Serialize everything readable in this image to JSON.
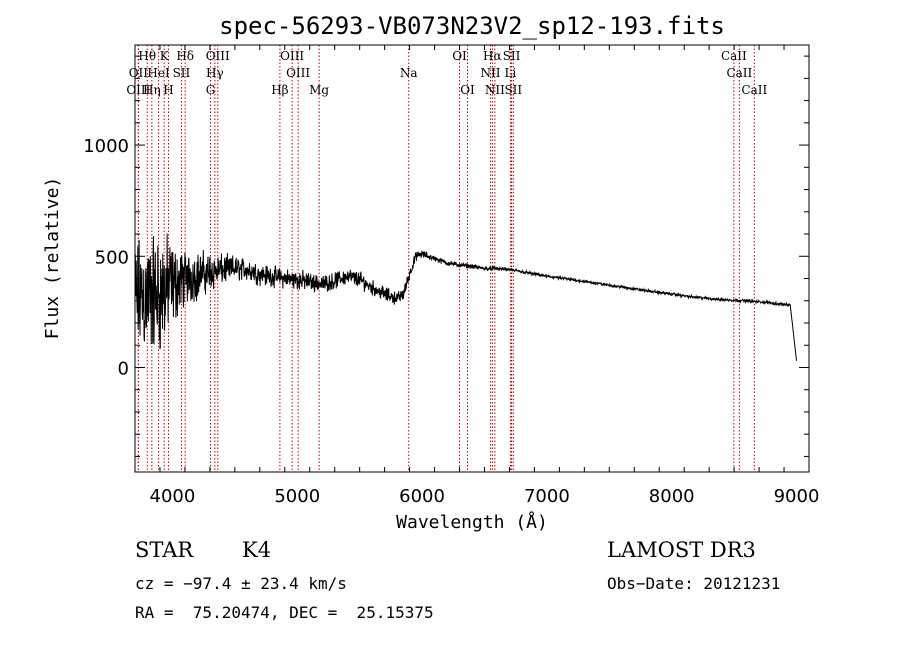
{
  "chart_data": {
    "type": "line",
    "title": "spec-56293-VB073N23V2_sp12-193.fits",
    "xlabel": "Wavelength (Å)",
    "ylabel": "Flux (relative)",
    "xlim": [
      3700,
      9100
    ],
    "ylim": [
      -470,
      1450
    ],
    "xticks": [
      4000,
      5000,
      6000,
      7000,
      8000,
      9000
    ],
    "xtick_labels": [
      "4000",
      "5000",
      "6000",
      "7000",
      "8000",
      "9000"
    ],
    "yticks": [
      0,
      500,
      1000
    ],
    "ytick_labels": [
      "0",
      "500",
      "1000"
    ],
    "spectrum": {
      "name": "flux",
      "x": [
        3700,
        3750,
        3800,
        3850,
        3900,
        3950,
        4000,
        4050,
        4100,
        4200,
        4300,
        4400,
        4500,
        4600,
        4700,
        4800,
        4900,
        5000,
        5100,
        5200,
        5300,
        5400,
        5500,
        5600,
        5700,
        5800,
        5850,
        5900,
        5950,
        6000,
        6100,
        6200,
        6300,
        6400,
        6500,
        6600,
        6700,
        6800,
        7000,
        7200,
        7500,
        7800,
        8000,
        8200,
        8400,
        8600,
        8800,
        8950,
        9000
      ],
      "values": [
        300,
        320,
        320,
        330,
        330,
        350,
        370,
        385,
        400,
        415,
        430,
        440,
        445,
        440,
        420,
        410,
        400,
        395,
        385,
        375,
        390,
        410,
        395,
        360,
        330,
        310,
        330,
        420,
        500,
        510,
        490,
        470,
        460,
        455,
        445,
        445,
        440,
        430,
        410,
        395,
        370,
        345,
        330,
        315,
        305,
        300,
        290,
        280,
        30
      ],
      "noise": [
        330,
        330,
        330,
        330,
        320,
        300,
        220,
        190,
        150,
        130,
        110,
        80,
        70,
        60,
        60,
        55,
        55,
        55,
        50,
        45,
        45,
        45,
        45,
        40,
        40,
        35,
        35,
        30,
        25,
        20,
        15,
        15,
        12,
        12,
        12,
        10,
        10,
        10,
        8,
        8,
        8,
        8,
        8,
        8,
        8,
        8,
        8,
        8,
        0
      ]
    },
    "spectral_lines": [
      {
        "label": "Hθ",
        "wavelength": 3798,
        "row": 0
      },
      {
        "label": "K",
        "wavelength": 3934,
        "row": 0
      },
      {
        "label": "Hδ",
        "wavelength": 4102,
        "row": 0
      },
      {
        "label": "OIII",
        "wavelength": 4363,
        "row": 0
      },
      {
        "label": "OIII",
        "wavelength": 4959,
        "row": 0
      },
      {
        "label": "OI",
        "wavelength": 6300,
        "row": 0
      },
      {
        "label": "Hα",
        "wavelength": 6563,
        "row": 0
      },
      {
        "label": "SII",
        "wavelength": 6717,
        "row": 0
      },
      {
        "label": "CaII",
        "wavelength": 8498,
        "row": 0
      },
      {
        "label": "OII",
        "wavelength": 3727,
        "row": 1
      },
      {
        "label": "HeI",
        "wavelength": 3889,
        "row": 1
      },
      {
        "label": "SII",
        "wavelength": 4072,
        "row": 1
      },
      {
        "label": "Hγ",
        "wavelength": 4340,
        "row": 1
      },
      {
        "label": "OIII",
        "wavelength": 5007,
        "row": 1
      },
      {
        "label": "Na",
        "wavelength": 5893,
        "row": 1
      },
      {
        "label": "NII",
        "wavelength": 6548,
        "row": 1
      },
      {
        "label": "Li",
        "wavelength": 6708,
        "row": 1
      },
      {
        "label": "CaII",
        "wavelength": 8542,
        "row": 1
      },
      {
        "label": "OIII",
        "wavelength": 3727,
        "row": 2
      },
      {
        "label": "Hη",
        "wavelength": 3835,
        "row": 2
      },
      {
        "label": "H",
        "wavelength": 3968,
        "row": 2
      },
      {
        "label": "G",
        "wavelength": 4305,
        "row": 2
      },
      {
        "label": "Hβ",
        "wavelength": 4861,
        "row": 2
      },
      {
        "label": "Mg",
        "wavelength": 5175,
        "row": 2
      },
      {
        "label": "OI",
        "wavelength": 6364,
        "row": 2
      },
      {
        "label": "NII",
        "wavelength": 6583,
        "row": 2
      },
      {
        "label": "SII",
        "wavelength": 6731,
        "row": 2
      },
      {
        "label": "CaII",
        "wavelength": 8662,
        "row": 2
      }
    ]
  },
  "info": {
    "object_class": "STAR",
    "subclass": "K4",
    "survey": "LAMOST DR3",
    "cz": "cz = −97.4 ± 23.4 km/s",
    "obs_date": "Obs−Date: 20121231",
    "coords": "RA =  75.20474, DEC =  25.15375"
  }
}
